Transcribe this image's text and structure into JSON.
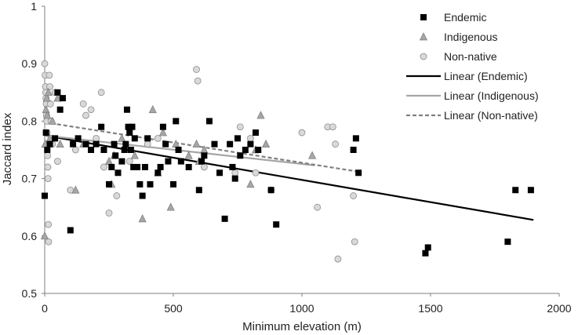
{
  "chart_data": {
    "type": "scatter",
    "title": "",
    "xlabel": "Minimum elevation (m)",
    "ylabel": "Jaccard index",
    "xlim": [
      0,
      2000
    ],
    "ylim": [
      0.5,
      1.0
    ],
    "x_ticks": [
      0,
      500,
      1000,
      1500,
      2000
    ],
    "y_ticks": [
      0.5,
      0.6,
      0.7,
      0.8,
      0.9,
      1.0
    ],
    "x_tick_labels": [
      "0",
      "500",
      "1000",
      "1500",
      "2000"
    ],
    "y_tick_labels": [
      "0.5",
      "0.6",
      "0.7",
      "0.8",
      "0.9",
      "1"
    ],
    "grid": false,
    "legend_position": "top-right",
    "series": [
      {
        "name": "Endemic",
        "marker": "square",
        "color": "#000000",
        "points": [
          [
            0,
            0.67
          ],
          [
            5,
            0.78
          ],
          [
            10,
            0.75
          ],
          [
            20,
            0.76
          ],
          [
            40,
            0.77
          ],
          [
            50,
            0.85
          ],
          [
            60,
            0.82
          ],
          [
            70,
            0.84
          ],
          [
            100,
            0.61
          ],
          [
            110,
            0.76
          ],
          [
            130,
            0.77
          ],
          [
            160,
            0.76
          ],
          [
            180,
            0.75
          ],
          [
            200,
            0.76
          ],
          [
            220,
            0.79
          ],
          [
            230,
            0.75
          ],
          [
            250,
            0.69
          ],
          [
            260,
            0.72
          ],
          [
            270,
            0.76
          ],
          [
            275,
            0.74
          ],
          [
            285,
            0.71
          ],
          [
            300,
            0.73
          ],
          [
            310,
            0.75
          ],
          [
            315,
            0.76
          ],
          [
            320,
            0.82
          ],
          [
            325,
            0.79
          ],
          [
            330,
            0.78
          ],
          [
            335,
            0.75
          ],
          [
            340,
            0.79
          ],
          [
            345,
            0.72
          ],
          [
            350,
            0.77
          ],
          [
            360,
            0.72
          ],
          [
            370,
            0.69
          ],
          [
            380,
            0.67
          ],
          [
            390,
            0.72
          ],
          [
            400,
            0.77
          ],
          [
            410,
            0.69
          ],
          [
            440,
            0.71
          ],
          [
            450,
            0.72
          ],
          [
            460,
            0.79
          ],
          [
            470,
            0.76
          ],
          [
            480,
            0.73
          ],
          [
            500,
            0.69
          ],
          [
            510,
            0.8
          ],
          [
            520,
            0.75
          ],
          [
            530,
            0.73
          ],
          [
            560,
            0.72
          ],
          [
            600,
            0.68
          ],
          [
            610,
            0.73
          ],
          [
            620,
            0.74
          ],
          [
            640,
            0.8
          ],
          [
            660,
            0.76
          ],
          [
            680,
            0.71
          ],
          [
            700,
            0.63
          ],
          [
            720,
            0.76
          ],
          [
            730,
            0.72
          ],
          [
            740,
            0.7
          ],
          [
            750,
            0.77
          ],
          [
            760,
            0.74
          ],
          [
            780,
            0.75
          ],
          [
            800,
            0.76
          ],
          [
            820,
            0.78
          ],
          [
            830,
            0.75
          ],
          [
            880,
            0.68
          ],
          [
            900,
            0.62
          ],
          [
            1200,
            0.75
          ],
          [
            1210,
            0.77
          ],
          [
            1220,
            0.71
          ],
          [
            1480,
            0.57
          ],
          [
            1490,
            0.58
          ],
          [
            1800,
            0.59
          ],
          [
            1830,
            0.68
          ],
          [
            1890,
            0.68
          ]
        ]
      },
      {
        "name": "Indigenous",
        "marker": "triangle",
        "color": "#a6a6a6",
        "points": [
          [
            0,
            0.6
          ],
          [
            2,
            0.76
          ],
          [
            5,
            0.82
          ],
          [
            8,
            0.84
          ],
          [
            10,
            0.81
          ],
          [
            15,
            0.85
          ],
          [
            20,
            0.77
          ],
          [
            30,
            0.8
          ],
          [
            50,
            0.84
          ],
          [
            60,
            0.76
          ],
          [
            120,
            0.68
          ],
          [
            150,
            0.76
          ],
          [
            250,
            0.73
          ],
          [
            260,
            0.69
          ],
          [
            270,
            0.74
          ],
          [
            300,
            0.77
          ],
          [
            350,
            0.74
          ],
          [
            380,
            0.63
          ],
          [
            420,
            0.82
          ],
          [
            440,
            0.71
          ],
          [
            460,
            0.78
          ],
          [
            490,
            0.65
          ],
          [
            510,
            0.76
          ],
          [
            560,
            0.74
          ],
          [
            590,
            0.76
          ],
          [
            600,
            0.73
          ],
          [
            620,
            0.75
          ],
          [
            800,
            0.69
          ],
          [
            820,
            0.75
          ],
          [
            840,
            0.81
          ],
          [
            860,
            0.76
          ],
          [
            1040,
            0.74
          ]
        ]
      },
      {
        "name": "Non-native",
        "marker": "circle",
        "color": "#d9d9d9",
        "points": [
          [
            0,
            0.9
          ],
          [
            2,
            0.88
          ],
          [
            3,
            0.86
          ],
          [
            4,
            0.85
          ],
          [
            5,
            0.84
          ],
          [
            6,
            0.83
          ],
          [
            7,
            0.81
          ],
          [
            8,
            0.8
          ],
          [
            9,
            0.78
          ],
          [
            10,
            0.76
          ],
          [
            11,
            0.74
          ],
          [
            12,
            0.72
          ],
          [
            13,
            0.7
          ],
          [
            14,
            0.62
          ],
          [
            15,
            0.59
          ],
          [
            18,
            0.88
          ],
          [
            20,
            0.86
          ],
          [
            22,
            0.83
          ],
          [
            25,
            0.8
          ],
          [
            28,
            0.77
          ],
          [
            30,
            0.76
          ],
          [
            40,
            0.85
          ],
          [
            50,
            0.73
          ],
          [
            60,
            0.84
          ],
          [
            100,
            0.68
          ],
          [
            120,
            0.75
          ],
          [
            150,
            0.83
          ],
          [
            160,
            0.81
          ],
          [
            180,
            0.82
          ],
          [
            200,
            0.77
          ],
          [
            220,
            0.85
          ],
          [
            230,
            0.72
          ],
          [
            250,
            0.64
          ],
          [
            280,
            0.67
          ],
          [
            330,
            0.73
          ],
          [
            400,
            0.76
          ],
          [
            440,
            0.77
          ],
          [
            590,
            0.89
          ],
          [
            595,
            0.87
          ],
          [
            620,
            0.72
          ],
          [
            740,
            0.71
          ],
          [
            760,
            0.79
          ],
          [
            800,
            0.77
          ],
          [
            820,
            0.71
          ],
          [
            880,
            0.68
          ],
          [
            1000,
            0.78
          ],
          [
            1060,
            0.65
          ],
          [
            1100,
            0.79
          ],
          [
            1120,
            0.79
          ],
          [
            1130,
            0.76
          ],
          [
            1140,
            0.56
          ],
          [
            1200,
            0.67
          ],
          [
            1205,
            0.59
          ]
        ]
      }
    ],
    "trendlines": [
      {
        "name": "Linear (Endemic)",
        "color": "#000000",
        "dash": "solid",
        "x": [
          0,
          1900
        ],
        "y": [
          0.775,
          0.628
        ]
      },
      {
        "name": "Linear (Indigenous)",
        "color": "#a6a6a6",
        "dash": "solid",
        "x": [
          0,
          1050
        ],
        "y": [
          0.775,
          0.723
        ]
      },
      {
        "name": "Linear (Non-native)",
        "color": "#808080",
        "dash": "dashed",
        "x": [
          0,
          1220
        ],
        "y": [
          0.798,
          0.712
        ]
      }
    ],
    "legend_entries": [
      "Endemic",
      "Indigenous",
      "Non-native",
      "Linear (Endemic)",
      "Linear (Indigenous)",
      "Linear (Non-native)"
    ]
  }
}
